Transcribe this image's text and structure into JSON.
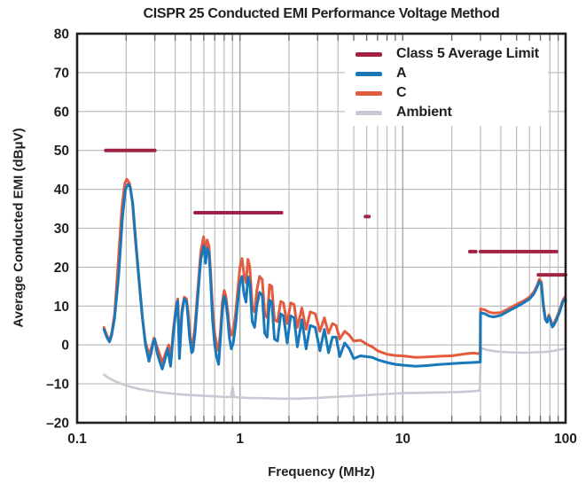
{
  "title": "CISPR 25 Conducted EMI Performance Voltage Method",
  "colors": {
    "limit": "#a02345",
    "series_a": "#1878ba",
    "series_c": "#e45b3e",
    "ambient": "#c8cad3",
    "grid": "#b7b7b7",
    "grid_major": "#a6a6a6",
    "axis": "#231f20",
    "tick": "#6b6b6b",
    "text": "#231f20"
  },
  "chart_data": {
    "type": "line",
    "title": "CISPR 25 Conducted EMI Performance Voltage Method",
    "xlabel": "Frequency (MHz)",
    "ylabel": "Average Conducted EMI (dBμV)",
    "x_scale": "log",
    "xlim": [
      0.1,
      100
    ],
    "ylim": [
      -20,
      80
    ],
    "grid": true,
    "legend_position": "top-right-inside",
    "x_tick_labels": [
      "0.1",
      "1",
      "10",
      "100"
    ],
    "x_tick_values": [
      0.1,
      1,
      10,
      100
    ],
    "y_tick_labels": [
      "80",
      "70",
      "60",
      "50",
      "40",
      "30",
      "20",
      "10",
      "0",
      "–10",
      "–20"
    ],
    "y_tick_values": [
      80,
      70,
      60,
      50,
      40,
      30,
      20,
      10,
      0,
      -10,
      -20
    ],
    "series": [
      {
        "name": "Class 5 Average Limit",
        "color": "#a02345",
        "type": "segments",
        "segments_mhz_db": [
          [
            0.15,
            0.3,
            50
          ],
          [
            0.53,
            1.8,
            34
          ],
          [
            5.9,
            6.2,
            33
          ],
          [
            25.8,
            28.1,
            24
          ],
          [
            30,
            88,
            24
          ],
          [
            68,
            100,
            18
          ]
        ]
      },
      {
        "name": "A",
        "color": "#1878ba",
        "type": "line",
        "points": [
          [
            0.146,
            4
          ],
          [
            0.152,
            2
          ],
          [
            0.158,
            0.8
          ],
          [
            0.163,
            2.5
          ],
          [
            0.17,
            7
          ],
          [
            0.18,
            18
          ],
          [
            0.19,
            33
          ],
          [
            0.198,
            40
          ],
          [
            0.205,
            41.3
          ],
          [
            0.212,
            40.6
          ],
          [
            0.22,
            36
          ],
          [
            0.23,
            26
          ],
          [
            0.24,
            17
          ],
          [
            0.252,
            7
          ],
          [
            0.263,
            0
          ],
          [
            0.276,
            -4.2
          ],
          [
            0.285,
            -2
          ],
          [
            0.295,
            1
          ],
          [
            0.3,
            1.5
          ],
          [
            0.31,
            -2
          ],
          [
            0.32,
            -4
          ],
          [
            0.333,
            -6.2
          ],
          [
            0.345,
            -4
          ],
          [
            0.36,
            -1
          ],
          [
            0.375,
            -5.5
          ],
          [
            0.39,
            3
          ],
          [
            0.405,
            9
          ],
          [
            0.415,
            11.3
          ],
          [
            0.425,
            -3.5
          ],
          [
            0.44,
            8
          ],
          [
            0.455,
            11.8
          ],
          [
            0.47,
            11.2
          ],
          [
            0.48,
            7
          ],
          [
            0.49,
            2
          ],
          [
            0.505,
            -2
          ],
          [
            0.515,
            -1.5
          ],
          [
            0.53,
            3
          ],
          [
            0.55,
            12
          ],
          [
            0.575,
            22
          ],
          [
            0.6,
            25.5
          ],
          [
            0.615,
            21
          ],
          [
            0.63,
            24.8
          ],
          [
            0.645,
            24
          ],
          [
            0.66,
            17
          ],
          [
            0.68,
            6
          ],
          [
            0.7,
            0
          ],
          [
            0.72,
            -3.2
          ],
          [
            0.74,
            -5
          ],
          [
            0.76,
            2
          ],
          [
            0.78,
            9
          ],
          [
            0.8,
            12.5
          ],
          [
            0.82,
            11
          ],
          [
            0.84,
            7
          ],
          [
            0.86,
            2
          ],
          [
            0.885,
            -1
          ],
          [
            0.91,
            0.5
          ],
          [
            0.94,
            5
          ],
          [
            0.97,
            11
          ],
          [
            1.0,
            16
          ],
          [
            1.03,
            17.6
          ],
          [
            1.06,
            13
          ],
          [
            1.09,
            11
          ],
          [
            1.12,
            17.5
          ],
          [
            1.15,
            16
          ],
          [
            1.19,
            6
          ],
          [
            1.23,
            4.5
          ],
          [
            1.27,
            10
          ],
          [
            1.32,
            13.5
          ],
          [
            1.37,
            12.8
          ],
          [
            1.42,
            3
          ],
          [
            1.47,
            2
          ],
          [
            1.52,
            11.5
          ],
          [
            1.57,
            11
          ],
          [
            1.63,
            1.5
          ],
          [
            1.7,
            1
          ],
          [
            1.78,
            8
          ],
          [
            1.85,
            7.5
          ],
          [
            1.95,
            0.5
          ],
          [
            2.05,
            7.5
          ],
          [
            2.15,
            7
          ],
          [
            2.25,
            -0.5
          ],
          [
            2.4,
            6.5
          ],
          [
            2.55,
            -1
          ],
          [
            2.7,
            5
          ],
          [
            2.9,
            4.5
          ],
          [
            3.1,
            -1.5
          ],
          [
            3.3,
            4
          ],
          [
            3.5,
            -2
          ],
          [
            3.7,
            2
          ],
          [
            3.9,
            2
          ],
          [
            4.1,
            -3
          ],
          [
            4.4,
            0.5
          ],
          [
            4.7,
            -1
          ],
          [
            5.0,
            -3.5
          ],
          [
            5.5,
            -2.8
          ],
          [
            6.0,
            -3
          ],
          [
            6.5,
            -3.2
          ],
          [
            7.0,
            -3.8
          ],
          [
            8.0,
            -4.5
          ],
          [
            9.0,
            -5
          ],
          [
            10,
            -5.2
          ],
          [
            12,
            -5.5
          ],
          [
            14,
            -5.3
          ],
          [
            17,
            -5.0
          ],
          [
            20,
            -4.8
          ],
          [
            24,
            -4.6
          ],
          [
            27,
            -4.5
          ],
          [
            29.9,
            -4.4
          ],
          [
            30,
            8.3
          ],
          [
            32,
            8.0
          ],
          [
            34,
            7.4
          ],
          [
            36,
            7.2
          ],
          [
            40,
            7.6
          ],
          [
            45,
            8.8
          ],
          [
            50,
            9.8
          ],
          [
            55,
            10.8
          ],
          [
            60,
            11.8
          ],
          [
            64,
            13.2
          ],
          [
            67,
            15.0
          ],
          [
            69,
            16.3
          ],
          [
            71,
            15.5
          ],
          [
            73,
            10
          ],
          [
            75,
            6.5
          ],
          [
            77,
            5.8
          ],
          [
            79,
            7.3
          ],
          [
            81,
            6.0
          ],
          [
            83,
            4.6
          ],
          [
            85,
            5.2
          ],
          [
            88,
            6.5
          ],
          [
            92,
            8.5
          ],
          [
            96,
            11
          ],
          [
            99,
            11.9
          ],
          [
            100,
            11.2
          ]
        ]
      },
      {
        "name": "C",
        "color": "#e45b3e",
        "type": "line",
        "points": [
          [
            0.146,
            4.5
          ],
          [
            0.152,
            2.5
          ],
          [
            0.158,
            1.2
          ],
          [
            0.163,
            3
          ],
          [
            0.17,
            8
          ],
          [
            0.178,
            20
          ],
          [
            0.188,
            35
          ],
          [
            0.196,
            41.5
          ],
          [
            0.202,
            42.6
          ],
          [
            0.21,
            41.5
          ],
          [
            0.218,
            37
          ],
          [
            0.228,
            27
          ],
          [
            0.238,
            18
          ],
          [
            0.25,
            8
          ],
          [
            0.262,
            1
          ],
          [
            0.276,
            -2.5
          ],
          [
            0.287,
            -0.5
          ],
          [
            0.297,
            1.8
          ],
          [
            0.31,
            -0.5
          ],
          [
            0.325,
            -3
          ],
          [
            0.335,
            -4.5
          ],
          [
            0.35,
            -2
          ],
          [
            0.365,
            0
          ],
          [
            0.378,
            -3
          ],
          [
            0.39,
            4
          ],
          [
            0.405,
            10
          ],
          [
            0.415,
            11.8
          ],
          [
            0.425,
            -1
          ],
          [
            0.44,
            9
          ],
          [
            0.455,
            12.3
          ],
          [
            0.47,
            11.8
          ],
          [
            0.482,
            8
          ],
          [
            0.492,
            3
          ],
          [
            0.505,
            0
          ],
          [
            0.515,
            0.5
          ],
          [
            0.53,
            5
          ],
          [
            0.55,
            14
          ],
          [
            0.575,
            24
          ],
          [
            0.598,
            27.8
          ],
          [
            0.612,
            23
          ],
          [
            0.628,
            27
          ],
          [
            0.645,
            25.5
          ],
          [
            0.66,
            19
          ],
          [
            0.68,
            9
          ],
          [
            0.7,
            3
          ],
          [
            0.72,
            0
          ],
          [
            0.74,
            -1.5
          ],
          [
            0.76,
            4
          ],
          [
            0.78,
            11
          ],
          [
            0.8,
            14
          ],
          [
            0.82,
            12.5
          ],
          [
            0.84,
            9
          ],
          [
            0.86,
            5
          ],
          [
            0.885,
            2.5
          ],
          [
            0.91,
            3.5
          ],
          [
            0.94,
            8
          ],
          [
            0.97,
            14
          ],
          [
            1.0,
            20
          ],
          [
            1.03,
            22.2
          ],
          [
            1.06,
            18
          ],
          [
            1.09,
            16
          ],
          [
            1.12,
            22
          ],
          [
            1.15,
            20
          ],
          [
            1.19,
            10
          ],
          [
            1.23,
            8.5
          ],
          [
            1.27,
            14
          ],
          [
            1.32,
            17.6
          ],
          [
            1.37,
            16.8
          ],
          [
            1.42,
            8
          ],
          [
            1.47,
            7
          ],
          [
            1.52,
            15.5
          ],
          [
            1.57,
            15
          ],
          [
            1.63,
            6.5
          ],
          [
            1.7,
            6
          ],
          [
            1.78,
            11.2
          ],
          [
            1.85,
            10.8
          ],
          [
            1.95,
            5.5
          ],
          [
            2.05,
            10.8
          ],
          [
            2.15,
            10.4
          ],
          [
            2.25,
            4.5
          ],
          [
            2.4,
            9.5
          ],
          [
            2.55,
            4
          ],
          [
            2.7,
            8.5
          ],
          [
            2.9,
            8
          ],
          [
            3.1,
            3.5
          ],
          [
            3.3,
            7
          ],
          [
            3.5,
            3
          ],
          [
            3.7,
            5.5
          ],
          [
            3.9,
            5
          ],
          [
            4.1,
            1.5
          ],
          [
            4.4,
            3.5
          ],
          [
            4.7,
            2.5
          ],
          [
            5.0,
            1
          ],
          [
            5.5,
            1.2
          ],
          [
            6.0,
            0.2
          ],
          [
            6.5,
            -0.5
          ],
          [
            7.0,
            -1.5
          ],
          [
            8.0,
            -2.4
          ],
          [
            9.0,
            -2.7
          ],
          [
            10,
            -2.8
          ],
          [
            12,
            -3.2
          ],
          [
            14,
            -3.1
          ],
          [
            17,
            -2.9
          ],
          [
            20,
            -2.8
          ],
          [
            24,
            -2.3
          ],
          [
            27,
            -2.1
          ],
          [
            29.9,
            -2.3
          ],
          [
            30,
            9.3
          ],
          [
            32,
            9.0
          ],
          [
            34,
            8.4
          ],
          [
            36,
            8.2
          ],
          [
            40,
            8.3
          ],
          [
            45,
            9.4
          ],
          [
            50,
            10.4
          ],
          [
            55,
            11.3
          ],
          [
            60,
            12.3
          ],
          [
            64,
            13.7
          ],
          [
            67,
            15.5
          ],
          [
            69,
            16.9
          ],
          [
            71,
            16.2
          ],
          [
            73,
            10.5
          ],
          [
            75,
            7
          ],
          [
            77,
            6.2
          ],
          [
            79,
            7.7
          ],
          [
            81,
            6.4
          ],
          [
            83,
            5.0
          ],
          [
            85,
            5.6
          ],
          [
            88,
            7
          ],
          [
            92,
            9
          ],
          [
            96,
            11.4
          ],
          [
            99,
            12.3
          ],
          [
            100,
            11.6
          ]
        ]
      },
      {
        "name": "Ambient",
        "color": "#c8cad3",
        "type": "line",
        "points": [
          [
            0.146,
            -7.6
          ],
          [
            0.155,
            -8.4
          ],
          [
            0.17,
            -9.3
          ],
          [
            0.19,
            -10.1
          ],
          [
            0.21,
            -10.7
          ],
          [
            0.24,
            -11.3
          ],
          [
            0.28,
            -11.8
          ],
          [
            0.33,
            -12.2
          ],
          [
            0.4,
            -12.6
          ],
          [
            0.5,
            -12.9
          ],
          [
            0.62,
            -13.1
          ],
          [
            0.75,
            -13.3
          ],
          [
            0.88,
            -13.4
          ],
          [
            0.9,
            -10.8
          ],
          [
            0.92,
            -13.4
          ],
          [
            1.1,
            -13.6
          ],
          [
            1.4,
            -13.7
          ],
          [
            1.8,
            -13.8
          ],
          [
            2.3,
            -13.8
          ],
          [
            3.0,
            -13.6
          ],
          [
            4.0,
            -13.3
          ],
          [
            5.0,
            -13.1
          ],
          [
            6.5,
            -12.8
          ],
          [
            8.0,
            -12.6
          ],
          [
            10,
            -12.4
          ],
          [
            13,
            -12.3
          ],
          [
            17,
            -12.2
          ],
          [
            22,
            -12.1
          ],
          [
            27,
            -11.9
          ],
          [
            29.7,
            -11.7
          ],
          [
            30.2,
            -0.8
          ],
          [
            33,
            -1.3
          ],
          [
            38,
            -1.7
          ],
          [
            45,
            -1.9
          ],
          [
            55,
            -2.0
          ],
          [
            65,
            -1.9
          ],
          [
            75,
            -1.8
          ],
          [
            85,
            -1.5
          ],
          [
            95,
            -1.1
          ],
          [
            100,
            -0.9
          ]
        ]
      }
    ]
  }
}
